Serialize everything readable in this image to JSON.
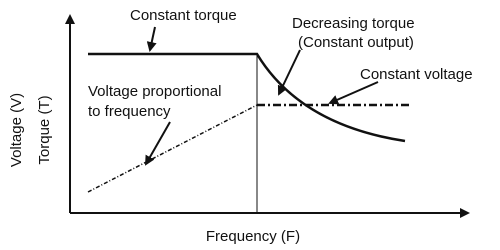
{
  "labels": {
    "constant_torque": "Constant torque",
    "decreasing_torque": "Decreasing torque",
    "constant_output": "(Constant output)",
    "constant_voltage": "Constant voltage",
    "voltage_proportional_1": "Voltage proportional",
    "voltage_proportional_2": "to frequency",
    "y_axis_voltage": "Voltage (V)",
    "y_axis_torque": "Torque (T)",
    "x_axis": "Frequency (F)"
  }
}
